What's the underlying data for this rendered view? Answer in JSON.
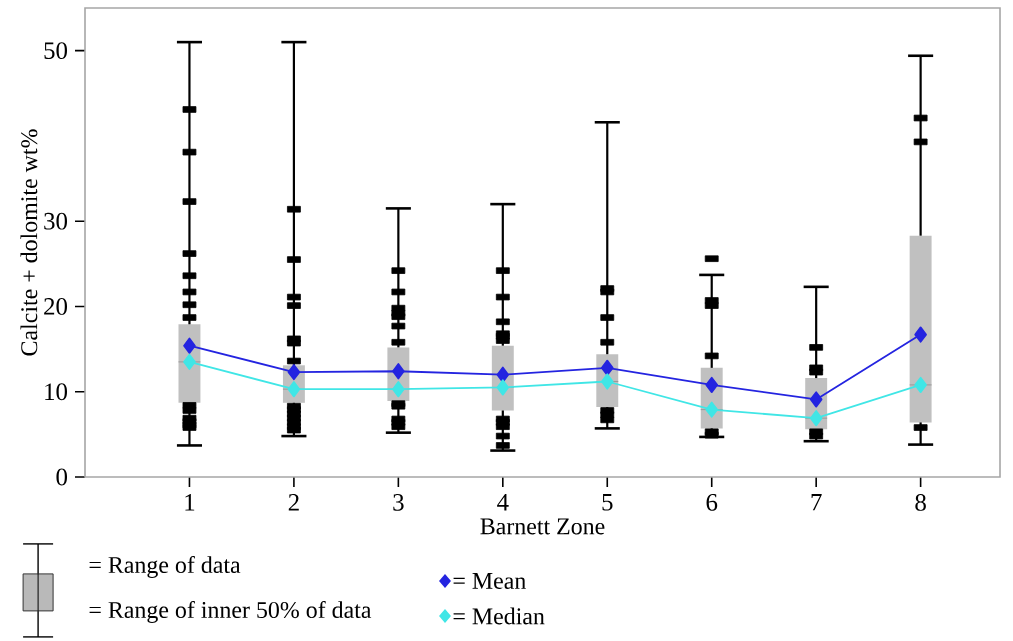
{
  "chart_data": {
    "type": "box",
    "xlabel": "Barnett Zone",
    "ylabel": "Calcite + dolomite wt%",
    "categories": [
      "1",
      "2",
      "3",
      "4",
      "5",
      "6",
      "7",
      "8"
    ],
    "ylim": [
      0,
      55
    ],
    "yticks": [
      0,
      10,
      20,
      30,
      50
    ],
    "legend": "bottom",
    "annotations": [
      "= Range of data",
      "= Range of inner 50% of data"
    ],
    "series": [
      {
        "color": "#c0c0c0",
        "boxes": [
          {
            "low": 3.7,
            "q1": 8.7,
            "median": 13.5,
            "q3": 17.9,
            "high": 51
          },
          {
            "low": 4.8,
            "q1": 8.7,
            "median": 10.3,
            "q3": 13.1,
            "high": 51
          },
          {
            "low": 5.2,
            "q1": 8.9,
            "median": 10.3,
            "q3": 15.2,
            "high": 31.5
          },
          {
            "low": 3.1,
            "q1": 7.8,
            "median": 10.5,
            "q3": 15.4,
            "high": 32
          },
          {
            "low": 5.7,
            "q1": 8.2,
            "median": 11.2,
            "q3": 14.4,
            "high": 41.6
          },
          {
            "low": 4.7,
            "q1": 5.7,
            "median": 7.9,
            "q3": 12.8,
            "high": 23.7,
            "outliers": [
              25.6
            ]
          },
          {
            "low": 4.2,
            "q1": 5.6,
            "median": 6.9,
            "q3": 11.6,
            "high": 22.3
          },
          {
            "low": 3.8,
            "q1": 6.4,
            "median": 10.8,
            "q3": 28.3,
            "high": 49.4
          }
        ]
      },
      {
        "type": "scatter",
        "color": "#000000",
        "marker": "square",
        "x": [
          "1",
          "1",
          "1",
          "1",
          "1",
          "1",
          "1",
          "1",
          "1",
          "1",
          "1",
          "1",
          "1",
          "1",
          "2",
          "2",
          "2",
          "2",
          "2",
          "2",
          "2",
          "2",
          "2",
          "2",
          "2",
          "2",
          "2",
          "2",
          "3",
          "3",
          "3",
          "3",
          "3",
          "3",
          "3",
          "3",
          "3",
          "3",
          "3",
          "3",
          "4",
          "4",
          "4",
          "4",
          "4",
          "4",
          "4",
          "4",
          "4",
          "4",
          "4",
          "5",
          "5",
          "5",
          "5",
          "5",
          "5",
          "5",
          "6",
          "6",
          "6",
          "6",
          "6",
          "7",
          "7",
          "7",
          "7",
          "7",
          "8",
          "8",
          "8"
        ],
        "values": [
          43.1,
          38.1,
          32.3,
          26.2,
          23.6,
          21.7,
          20.2,
          18.7,
          8.4,
          7.8,
          6.9,
          6.5,
          6.1,
          5.8,
          31.4,
          25.5,
          21.1,
          20.1,
          16.2,
          15.7,
          13.6,
          8.3,
          7.9,
          7.4,
          6.9,
          6.4,
          5.9,
          5.5,
          24.2,
          21.7,
          19.8,
          19.2,
          18.8,
          17.7,
          15.8,
          8.6,
          8.3,
          6.8,
          6.4,
          5.9,
          24.2,
          21.1,
          18.2,
          16.8,
          16.5,
          16.0,
          6.8,
          6.4,
          5.9,
          4.8,
          3.7,
          22.1,
          21.7,
          18.7,
          15.8,
          7.8,
          7.3,
          6.7,
          20.7,
          20.1,
          14.2,
          5.3,
          4.9,
          15.2,
          12.8,
          12.3,
          5.3,
          4.8,
          42.1,
          39.3,
          5.8
        ]
      },
      {
        "type": "line",
        "name": "= Mean",
        "color": "#2424e0",
        "marker": "diamond",
        "values": [
          15.4,
          12.3,
          12.4,
          12.0,
          12.8,
          10.8,
          9.1,
          16.7
        ]
      },
      {
        "type": "line",
        "name": "= Median",
        "color": "#40e6e6",
        "marker": "diamond",
        "values": [
          13.5,
          10.3,
          10.3,
          10.5,
          11.2,
          7.9,
          6.9,
          10.8
        ]
      }
    ]
  }
}
